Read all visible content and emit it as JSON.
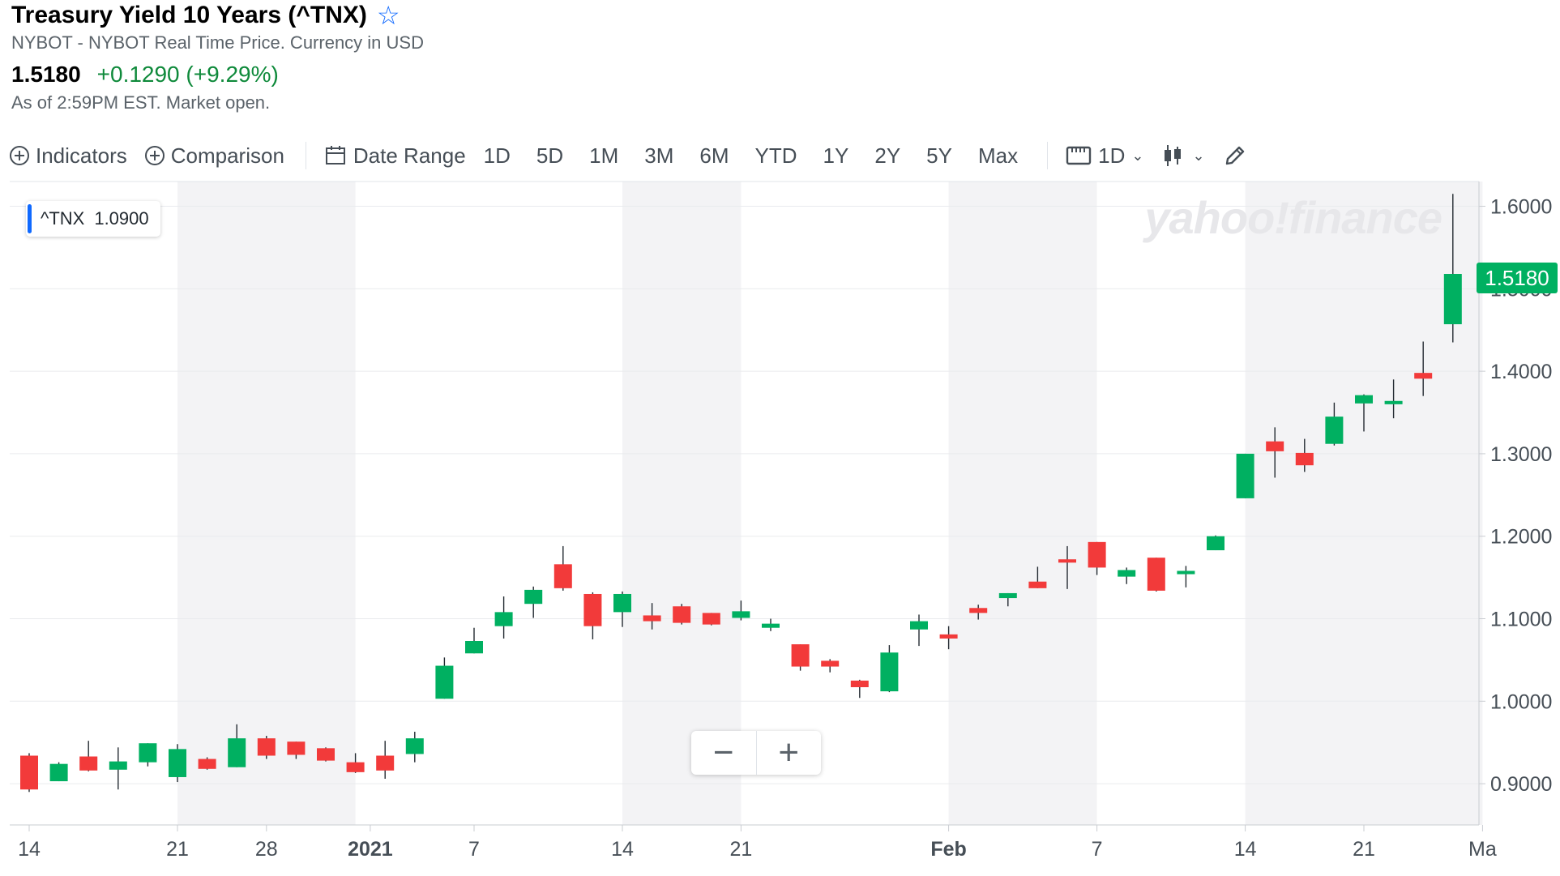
{
  "quote": {
    "title": "Treasury Yield 10 Years (^TNX)",
    "exchange": "NYBOT - NYBOT Real Time Price. Currency in USD",
    "price": "1.5180",
    "change": "+0.1290 (+9.29%)",
    "as_of": "As of 2:59PM EST. Market open."
  },
  "toolbar": {
    "indicators": "Indicators",
    "comparison": "Comparison",
    "date_range": "Date Range",
    "ranges": [
      "1D",
      "5D",
      "1M",
      "3M",
      "6M",
      "YTD",
      "1Y",
      "2Y",
      "5Y",
      "Max"
    ],
    "interval": "1D"
  },
  "legend": {
    "symbol": "^TNX",
    "value": "1.0900"
  },
  "watermark": "yahoo!finance",
  "last_price_tag": "1.5180",
  "zoom": {
    "minus": "−",
    "plus": "+"
  },
  "colors": {
    "up": "#00b061",
    "down": "#f23a3a",
    "accent": "#0f69ff",
    "change": "#0f8a3b"
  },
  "chart_data": {
    "type": "candlestick",
    "ylim": [
      0.85,
      1.63
    ],
    "y_ticks": [
      "0.9000",
      "1.0000",
      "1.1000",
      "1.2000",
      "1.3000",
      "1.4000",
      "1.5000",
      "1.6000"
    ],
    "x_ticks": [
      {
        "label": "14",
        "index": 0
      },
      {
        "label": "21",
        "index": 5
      },
      {
        "label": "28",
        "index": 8
      },
      {
        "label": "2021",
        "index": 11.5
      },
      {
        "label": "7",
        "index": 15
      },
      {
        "label": "14",
        "index": 20
      },
      {
        "label": "21",
        "index": 24
      },
      {
        "label": "Feb",
        "index": 31
      },
      {
        "label": "7",
        "index": 36
      },
      {
        "label": "14",
        "index": 41
      },
      {
        "label": "21",
        "index": 45
      },
      {
        "label": "Ma",
        "index": 49
      }
    ],
    "shaded_bands": [
      [
        5,
        11
      ],
      [
        20,
        24
      ],
      [
        31,
        36
      ],
      [
        41,
        49
      ]
    ],
    "candles": [
      {
        "o": 0.934,
        "h": 0.937,
        "l": 0.89,
        "c": 0.893
      },
      {
        "o": 0.903,
        "h": 0.926,
        "l": 0.903,
        "c": 0.924
      },
      {
        "o": 0.933,
        "h": 0.952,
        "l": 0.915,
        "c": 0.916
      },
      {
        "o": 0.917,
        "h": 0.944,
        "l": 0.893,
        "c": 0.927
      },
      {
        "o": 0.926,
        "h": 0.949,
        "l": 0.921,
        "c": 0.949
      },
      {
        "o": 0.908,
        "h": 0.948,
        "l": 0.902,
        "c": 0.942
      },
      {
        "o": 0.93,
        "h": 0.932,
        "l": 0.917,
        "c": 0.918
      },
      {
        "o": 0.92,
        "h": 0.972,
        "l": 0.92,
        "c": 0.955
      },
      {
        "o": 0.955,
        "h": 0.958,
        "l": 0.93,
        "c": 0.934
      },
      {
        "o": 0.951,
        "h": 0.951,
        "l": 0.93,
        "c": 0.935
      },
      {
        "o": 0.943,
        "h": 0.944,
        "l": 0.927,
        "c": 0.928
      },
      {
        "o": 0.926,
        "h": 0.937,
        "l": 0.913,
        "c": 0.914
      },
      {
        "o": 0.934,
        "h": 0.952,
        "l": 0.906,
        "c": 0.916
      },
      {
        "o": 0.936,
        "h": 0.963,
        "l": 0.926,
        "c": 0.955
      },
      {
        "o": 1.003,
        "h": 1.053,
        "l": 1.003,
        "c": 1.043
      },
      {
        "o": 1.058,
        "h": 1.089,
        "l": 1.058,
        "c": 1.073
      },
      {
        "o": 1.091,
        "h": 1.127,
        "l": 1.076,
        "c": 1.108
      },
      {
        "o": 1.118,
        "h": 1.139,
        "l": 1.101,
        "c": 1.135
      },
      {
        "o": 1.166,
        "h": 1.188,
        "l": 1.134,
        "c": 1.137
      },
      {
        "o": 1.13,
        "h": 1.132,
        "l": 1.075,
        "c": 1.091
      },
      {
        "o": 1.108,
        "h": 1.133,
        "l": 1.09,
        "c": 1.13
      },
      {
        "o": 1.104,
        "h": 1.119,
        "l": 1.087,
        "c": 1.097
      },
      {
        "o": 1.115,
        "h": 1.118,
        "l": 1.093,
        "c": 1.095
      },
      {
        "o": 1.107,
        "h": 1.107,
        "l": 1.092,
        "c": 1.093
      },
      {
        "o": 1.101,
        "h": 1.122,
        "l": 1.098,
        "c": 1.109
      },
      {
        "o": 1.089,
        "h": 1.1,
        "l": 1.085,
        "c": 1.094
      },
      {
        "o": 1.069,
        "h": 1.069,
        "l": 1.037,
        "c": 1.042
      },
      {
        "o": 1.049,
        "h": 1.051,
        "l": 1.035,
        "c": 1.042
      },
      {
        "o": 1.025,
        "h": 1.026,
        "l": 1.004,
        "c": 1.017
      },
      {
        "o": 1.012,
        "h": 1.068,
        "l": 1.011,
        "c": 1.059
      },
      {
        "o": 1.087,
        "h": 1.105,
        "l": 1.067,
        "c": 1.097
      },
      {
        "o": 1.081,
        "h": 1.091,
        "l": 1.063,
        "c": 1.076
      },
      {
        "o": 1.113,
        "h": 1.117,
        "l": 1.099,
        "c": 1.107
      },
      {
        "o": 1.125,
        "h": 1.131,
        "l": 1.115,
        "c": 1.131
      },
      {
        "o": 1.145,
        "h": 1.163,
        "l": 1.137,
        "c": 1.137
      },
      {
        "o": 1.172,
        "h": 1.188,
        "l": 1.136,
        "c": 1.168
      },
      {
        "o": 1.193,
        "h": 1.193,
        "l": 1.153,
        "c": 1.162
      },
      {
        "o": 1.151,
        "h": 1.162,
        "l": 1.142,
        "c": 1.159
      },
      {
        "o": 1.174,
        "h": 1.174,
        "l": 1.133,
        "c": 1.134
      },
      {
        "o": 1.154,
        "h": 1.164,
        "l": 1.138,
        "c": 1.158
      },
      {
        "o": 1.183,
        "h": 1.201,
        "l": 1.183,
        "c": 1.2
      },
      {
        "o": 1.246,
        "h": 1.3,
        "l": 1.246,
        "c": 1.3
      },
      {
        "o": 1.315,
        "h": 1.332,
        "l": 1.271,
        "c": 1.303
      },
      {
        "o": 1.301,
        "h": 1.318,
        "l": 1.278,
        "c": 1.286
      },
      {
        "o": 1.312,
        "h": 1.362,
        "l": 1.31,
        "c": 1.345
      },
      {
        "o": 1.361,
        "h": 1.372,
        "l": 1.327,
        "c": 1.371
      },
      {
        "o": 1.36,
        "h": 1.39,
        "l": 1.343,
        "c": 1.364
      },
      {
        "o": 1.398,
        "h": 1.436,
        "l": 1.37,
        "c": 1.391
      },
      {
        "o": 1.457,
        "h": 1.615,
        "l": 1.435,
        "c": 1.518
      }
    ]
  }
}
